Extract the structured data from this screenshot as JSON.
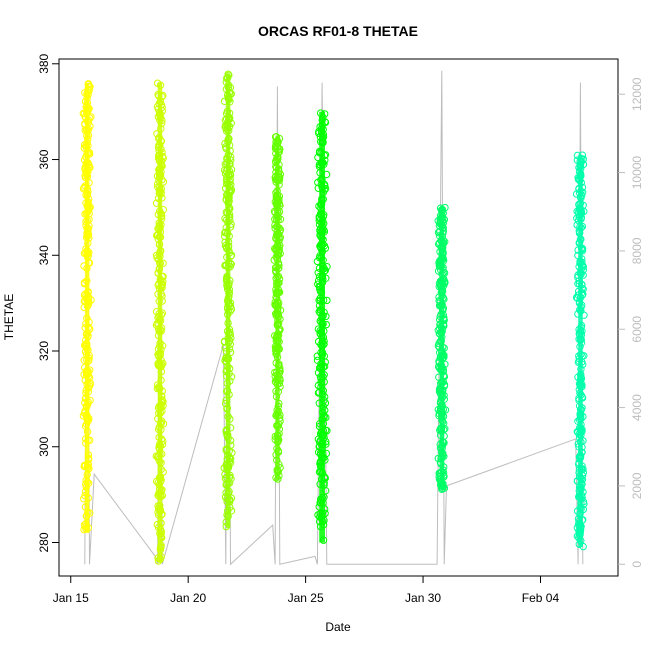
{
  "chart_data": {
    "type": "scatter",
    "title": "ORCAS RF01-8 THETAE",
    "xlabel": "Date",
    "ylabel": "THETAE",
    "x_ticks": [
      "Jan 15",
      "Jan 20",
      "Jan 25",
      "Jan 30",
      "Feb 04"
    ],
    "x_tick_dates": [
      "2016-01-15",
      "2016-01-20",
      "2016-01-25",
      "2016-01-30",
      "2016-02-04"
    ],
    "xlim": [
      "2016-01-14.5",
      "2016-02-07.3"
    ],
    "y_ticks": [
      280,
      300,
      320,
      340,
      360,
      380
    ],
    "ylim": [
      273,
      381
    ],
    "y2_ticks": [
      0,
      2000,
      4000,
      6000,
      8000,
      10000,
      12000
    ],
    "y2lim": [
      -300,
      12900
    ],
    "y2_color": "#bdbdbd",
    "series": [
      {
        "flight_day": "2016-01-15.7",
        "color": "#ffff00",
        "thetae_min": 282,
        "thetae_max": 376,
        "width_days": 0.35,
        "alt_max": 12000
      },
      {
        "flight_day": "2016-01-18.8",
        "color": "#ccff00",
        "thetae_min": 276,
        "thetae_max": 376,
        "width_days": 0.35,
        "alt_max": 10500
      },
      {
        "flight_day": "2016-01-21.7",
        "color": "#99ff00",
        "thetae_min": 283,
        "thetae_max": 378,
        "width_days": 0.35,
        "alt_max": 12000
      },
      {
        "flight_day": "2016-01-23.8",
        "color": "#66ff00",
        "thetae_min": 293,
        "thetae_max": 365,
        "width_days": 0.3,
        "alt_max": 12200
      },
      {
        "flight_day": "2016-01-25.7",
        "color": "#00ff00",
        "thetae_min": 280,
        "thetae_max": 370,
        "width_days": 0.45,
        "alt_max": 12300
      },
      {
        "flight_day": "2016-01-30.8",
        "color": "#00ff66",
        "thetae_min": 291,
        "thetae_max": 350,
        "width_days": 0.35,
        "alt_max": 12600
      },
      {
        "flight_day": "2016-02-05.7",
        "color": "#00ffaa",
        "thetae_min": 279,
        "thetae_max": 361,
        "width_days": 0.35,
        "alt_max": 12300
      }
    ],
    "altitude_trace": {
      "color": "#bdbdbd",
      "points": [
        [
          "2016-01-15.6",
          0
        ],
        [
          "2016-01-15.7",
          12000
        ],
        [
          "2016-01-15.8",
          0
        ],
        [
          "2016-01-16.0",
          2300
        ],
        [
          "2016-01-18.6",
          200
        ],
        [
          "2016-01-18.7",
          0
        ],
        [
          "2016-01-18.8",
          10500
        ],
        [
          "2016-01-18.9",
          0
        ],
        [
          "2016-01-21.5",
          5600
        ],
        [
          "2016-01-21.6",
          0
        ],
        [
          "2016-01-21.7",
          12000
        ],
        [
          "2016-01-21.8",
          0
        ],
        [
          "2016-01-23.6",
          1000
        ],
        [
          "2016-01-23.7",
          0
        ],
        [
          "2016-01-23.8",
          12200
        ],
        [
          "2016-01-23.9",
          0
        ],
        [
          "2016-01-25.4",
          200
        ],
        [
          "2016-01-25.5",
          0
        ],
        [
          "2016-01-25.7",
          12300
        ],
        [
          "2016-01-25.9",
          0
        ],
        [
          "2016-01-26.1",
          0
        ],
        [
          "2016-01-30.6",
          0
        ],
        [
          "2016-01-30.8",
          12600
        ],
        [
          "2016-01-30.9",
          0
        ],
        [
          "2016-01-31.0",
          2000
        ],
        [
          "2016-02-05.5",
          3200
        ],
        [
          "2016-02-05.6",
          0
        ],
        [
          "2016-02-05.7",
          12300
        ],
        [
          "2016-02-05.8",
          0
        ]
      ]
    },
    "grid": false,
    "legend": "none"
  }
}
